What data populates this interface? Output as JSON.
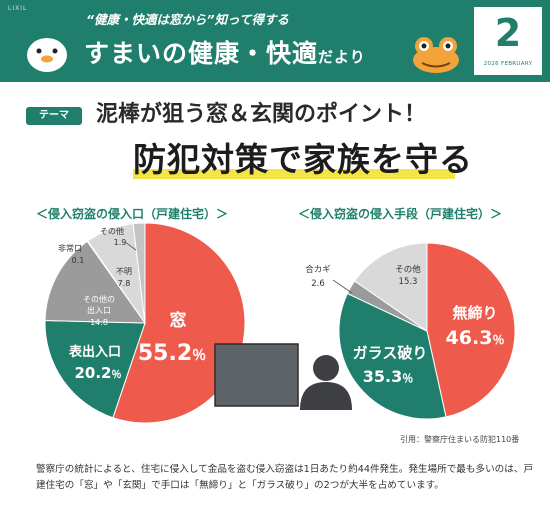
{
  "header": {
    "brand": "LIXIL",
    "tagline": "“健康・快適は窓から”知って得する",
    "title_main": "すまいの健康・快適",
    "title_small": "だより",
    "month_number": "2",
    "month_label": "2026 FEBRUARY"
  },
  "theme": {
    "badge": "テーマ",
    "headline1": "泥棒が狙う窓＆玄関のポイント！",
    "headline2": "防犯対策で家族を守る"
  },
  "colors": {
    "green": "#1f7f6c",
    "red": "#ee5a4b",
    "gray": "#9b9b9b",
    "light_gray": "#d9d9d9",
    "yellow": "#f3e547"
  },
  "chart_data": [
    {
      "type": "pie",
      "title": "＜侵入窃盗の侵入口（戸建住宅）＞",
      "slices": [
        {
          "label": "窓",
          "value": 55.2,
          "color": "#ee5a4b",
          "display": "55.2％"
        },
        {
          "label": "表出入口",
          "value": 20.2,
          "color": "#1f7f6c",
          "display": "20.2％"
        },
        {
          "label": "その他の出入口",
          "value": 14.8,
          "color": "#9b9b9b",
          "display": "14.8"
        },
        {
          "label": "非常口",
          "value": 0.1,
          "color": "#7a7a7a",
          "display": "0.1"
        },
        {
          "label": "不明",
          "value": 7.8,
          "color": "#d9d9d9",
          "display": "7.8"
        },
        {
          "label": "その他",
          "value": 1.9,
          "color": "#c4c4c4",
          "display": "1.9"
        }
      ]
    },
    {
      "type": "pie",
      "title": "＜侵入窃盗の侵入手段（戸建住宅）＞",
      "slices": [
        {
          "label": "無締り",
          "value": 46.3,
          "color": "#ee5a4b",
          "display": "46.3％"
        },
        {
          "label": "ガラス破り",
          "value": 35.3,
          "color": "#1f7f6c",
          "display": "35.3％"
        },
        {
          "label": "合カギ",
          "value": 2.6,
          "color": "#9b9b9b",
          "display": "2.6"
        },
        {
          "label": "その他",
          "value": 15.3,
          "color": "#d9d9d9",
          "display": "15.3"
        }
      ]
    }
  ],
  "labels": {
    "left_mado": "窓",
    "left_mado_value": "55.2",
    "left_omote": "表出入口",
    "left_omote_value": "20.2",
    "left_sonota_deiri_1": "その他の",
    "left_sonota_deiri_2": "出入口",
    "left_sonota_deiri_value": "14.8",
    "left_hijo": "非常口",
    "left_hijo_value": "0.1",
    "left_fumei": "不明",
    "left_fumei_value": "7.8",
    "left_sonota": "その他",
    "left_sonota_value": "1.9",
    "right_mujimari": "無締り",
    "right_mujimari_value": "46.3",
    "right_glass": "ガラス破り",
    "right_glass_value": "35.3",
    "right_aikagi": "合カギ",
    "right_aikagi_value": "2.6",
    "right_sonota": "その他",
    "right_sonota_value": "15.3",
    "percent": "％"
  },
  "source": "引用：警察庁住まいる防犯110番",
  "description": "警察庁の統計によると、住宅に侵入して金品を盗む侵入窃盗は1日あたり約44件発生。発生場所で最も多いのは、戸建住宅の「窓」や「玄関」で手口は「無締り」と「ガラス破り」の2つが大半を占めています。"
}
